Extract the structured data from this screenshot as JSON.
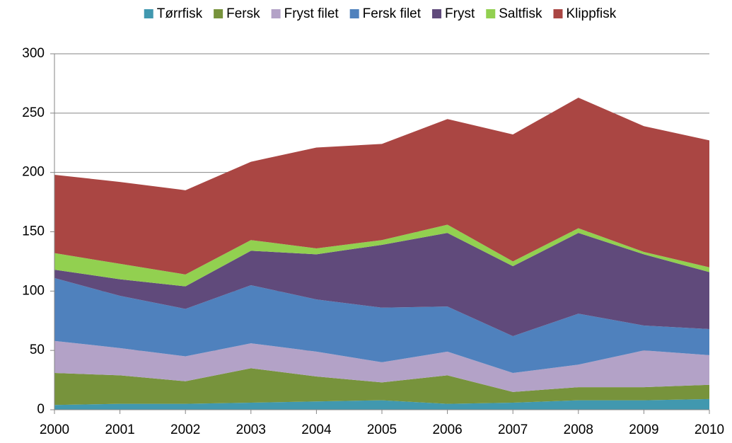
{
  "chart_data": {
    "type": "stacked_area",
    "categories": [
      "2000",
      "2001",
      "2002",
      "2003",
      "2004",
      "2005",
      "2006",
      "2007",
      "2008",
      "2009",
      "2010"
    ],
    "series": [
      {
        "name": "Tørrfisk",
        "color": "#4198af",
        "values": [
          4,
          5,
          5,
          6,
          7,
          8,
          5,
          6,
          8,
          8,
          9
        ]
      },
      {
        "name": "Fersk",
        "color": "#77933c",
        "values": [
          27,
          24,
          19,
          29,
          21,
          15,
          24,
          9,
          11,
          11,
          12
        ]
      },
      {
        "name": "Fryst filet",
        "color": "#b3a2c7",
        "values": [
          27,
          23,
          21,
          21,
          21,
          17,
          20,
          16,
          19,
          31,
          25
        ]
      },
      {
        "name": "Fersk filet",
        "color": "#4f81bd",
        "values": [
          53,
          44,
          40,
          49,
          44,
          46,
          38,
          31,
          43,
          21,
          22
        ]
      },
      {
        "name": "Fryst",
        "color": "#604a7b",
        "values": [
          7,
          14,
          19,
          29,
          38,
          53,
          62,
          59,
          68,
          60,
          48
        ]
      },
      {
        "name": "Saltfisk",
        "color": "#92d050",
        "values": [
          14,
          13,
          10,
          9,
          5,
          4,
          7,
          4,
          4,
          2,
          4
        ]
      },
      {
        "name": "Klippfisk",
        "color": "#aa4643",
        "values": [
          66,
          69,
          71,
          66,
          85,
          81,
          89,
          107,
          110,
          106,
          107
        ]
      }
    ],
    "ylim": [
      0,
      300
    ],
    "yticks": [
      0,
      50,
      100,
      150,
      200,
      250,
      300
    ],
    "grid": true,
    "legend": "top"
  }
}
